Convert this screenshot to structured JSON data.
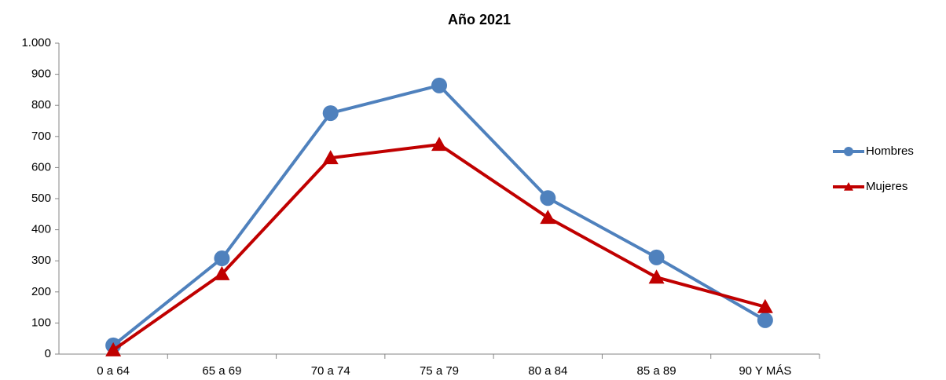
{
  "chart_data": {
    "type": "line",
    "title": "Año 2021",
    "categories": [
      "0 a 64",
      "65 a 69",
      "70 a 74",
      "75 a 79",
      "80 a 84",
      "85 a 89",
      "90 Y MÁS"
    ],
    "series": [
      {
        "name": "Hombres",
        "color": "#4f81bd",
        "marker": "circle",
        "values": [
          28,
          308,
          775,
          864,
          502,
          311,
          109
        ]
      },
      {
        "name": "Mujeres",
        "color": "#c00000",
        "marker": "triangle",
        "values": [
          13,
          258,
          631,
          674,
          439,
          247,
          152
        ]
      }
    ],
    "ylim": [
      0,
      1000
    ],
    "yticks": [
      0,
      100,
      200,
      300,
      400,
      500,
      600,
      700,
      800,
      900,
      {
        "value": 1000,
        "label": "1.000"
      }
    ],
    "grid": false,
    "legend": "right"
  }
}
